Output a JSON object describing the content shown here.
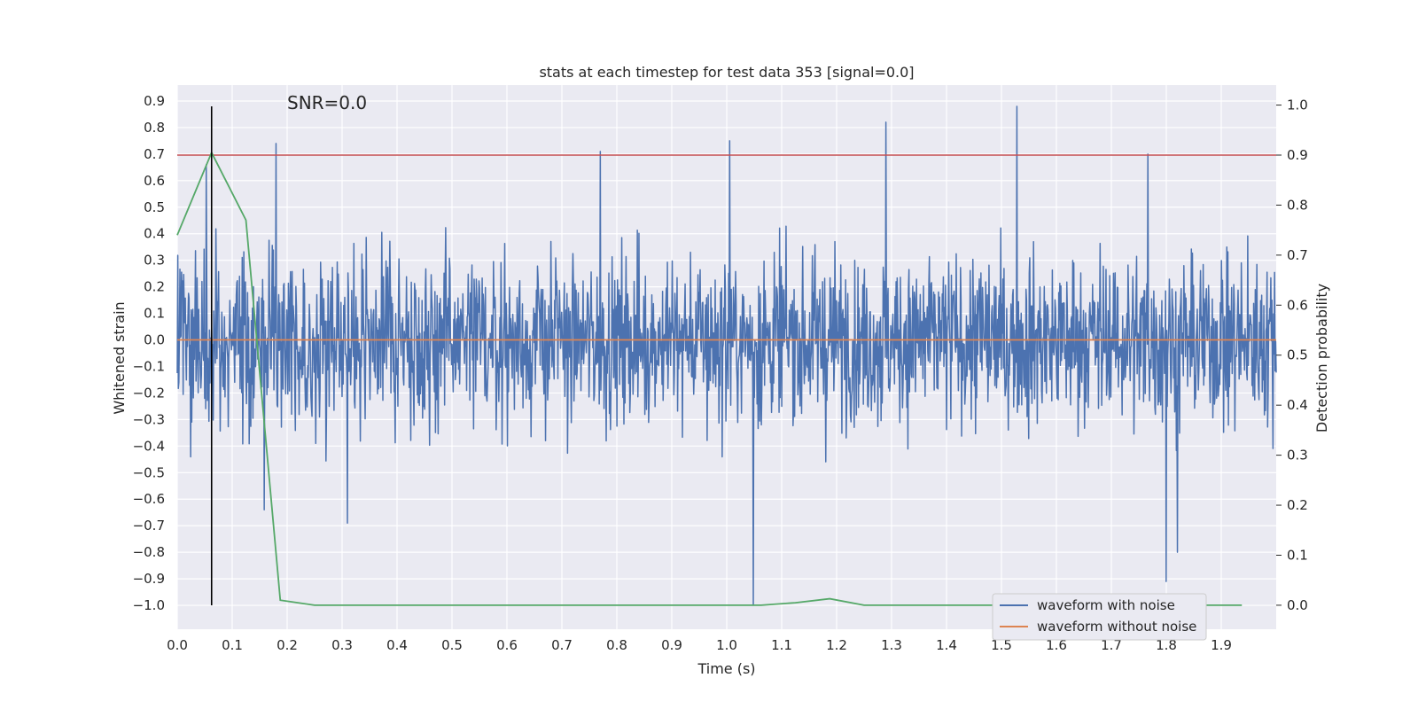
{
  "chart_data": {
    "type": "line",
    "title": "stats at each timestep for test data 353 [signal=0.0]",
    "xlabel": "Time (s)",
    "ylabel": "Whitened strain",
    "ylabel_right": "Detection probability",
    "xlim": [
      0.0,
      2.0
    ],
    "ylim": [
      -1.09,
      0.96
    ],
    "ylim_right": [
      -0.048,
      1.04
    ],
    "x_ticks": [
      0.0,
      0.1,
      0.2,
      0.3,
      0.4,
      0.5,
      0.6,
      0.7,
      0.8,
      0.9,
      1.0,
      1.1,
      1.2,
      1.3,
      1.4,
      1.5,
      1.6,
      1.7,
      1.8,
      1.9
    ],
    "x_tick_labels": [
      "0.0",
      "0.1",
      "0.2",
      "0.3",
      "0.4",
      "0.5",
      "0.6",
      "0.7",
      "0.8",
      "0.9",
      "1.0",
      "1.1",
      "1.2",
      "1.3",
      "1.4",
      "1.5",
      "1.6",
      "1.7",
      "1.8",
      "1.9"
    ],
    "y_ticks": [
      0.9,
      0.8,
      0.7,
      0.6,
      0.5,
      0.4,
      0.3,
      0.2,
      0.1,
      0.0,
      -0.1,
      -0.2,
      -0.3,
      -0.4,
      -0.5,
      -0.6,
      -0.7,
      -0.8,
      -0.9,
      -1.0
    ],
    "y_tick_labels": [
      "0.9",
      "0.8",
      "0.7",
      "0.6",
      "0.5",
      "0.4",
      "0.3",
      "0.2",
      "0.1",
      "0.0",
      "−0.1",
      "−0.2",
      "−0.3",
      "−0.4",
      "−0.5",
      "−0.6",
      "−0.7",
      "−0.8",
      "−0.9",
      "−1.0"
    ],
    "y_right_ticks": [
      1.0,
      0.9,
      0.8,
      0.7,
      0.6,
      0.5,
      0.4,
      0.3,
      0.2,
      0.1,
      0.0
    ],
    "y_right_tick_labels": [
      "1.0",
      "0.9",
      "0.8",
      "0.7",
      "0.6",
      "0.5",
      "0.4",
      "0.3",
      "0.2",
      "0.1",
      "0.0"
    ],
    "grid": true,
    "legend_position": "lower-right",
    "annotation": "SNR=0.0",
    "series": [
      {
        "name": "waveform with noise",
        "color": "#4c72b0",
        "axis": "left",
        "kind": "noise",
        "x_range": [
          0.0,
          2.0
        ],
        "sample_count": 2048,
        "y_range_shown": [
          -1.0,
          0.88
        ],
        "spikes": [
          {
            "x": 0.18,
            "y": 0.74
          },
          {
            "x": 0.158,
            "y": -0.64
          },
          {
            "x": 0.77,
            "y": 0.71
          },
          {
            "x": 1.005,
            "y": 0.75
          },
          {
            "x": 1.048,
            "y": -1.0
          },
          {
            "x": 1.29,
            "y": 0.82
          },
          {
            "x": 1.528,
            "y": 0.88
          },
          {
            "x": 1.766,
            "y": 0.7
          },
          {
            "x": 1.8,
            "y": -0.91
          },
          {
            "x": 1.82,
            "y": -0.8
          },
          {
            "x": 0.31,
            "y": -0.69
          },
          {
            "x": 0.053,
            "y": 0.66
          }
        ]
      },
      {
        "name": "waveform without noise",
        "color": "#dd8452",
        "axis": "left",
        "x": [
          0.0,
          2.0
        ],
        "y": [
          0.0,
          0.0
        ]
      },
      {
        "name": "",
        "color": "#55a868",
        "axis": "right",
        "x": [
          0.0,
          0.0625,
          0.125,
          0.1875,
          0.25,
          0.3125,
          0.375,
          0.4375,
          0.5,
          0.5625,
          0.625,
          0.6875,
          0.75,
          0.8125,
          0.875,
          0.9375,
          1.0,
          1.0625,
          1.125,
          1.1875,
          1.25,
          1.3125,
          1.375,
          1.4375,
          1.5,
          1.5625,
          1.625,
          1.6875,
          1.75,
          1.8125,
          1.875,
          1.9375
        ],
        "y": [
          0.74,
          0.905,
          0.77,
          0.01,
          0.0,
          0.0,
          0.0,
          0.0,
          0.0,
          0.0,
          0.0,
          0.0,
          0.0,
          0.0,
          0.0,
          0.0,
          0.0,
          0.0,
          0.005,
          0.013,
          0.0,
          0.0,
          0.0,
          0.0,
          0.0,
          0.0,
          0.0,
          0.0,
          0.0,
          0.0,
          0.0,
          0.0
        ]
      }
    ],
    "threshold_line": {
      "axis": "right",
      "y": 0.9,
      "color": "#c44e52"
    },
    "marker_line": {
      "x": 0.0625,
      "y_from": -1.0,
      "y_to": 0.88,
      "color": "#000000"
    }
  }
}
